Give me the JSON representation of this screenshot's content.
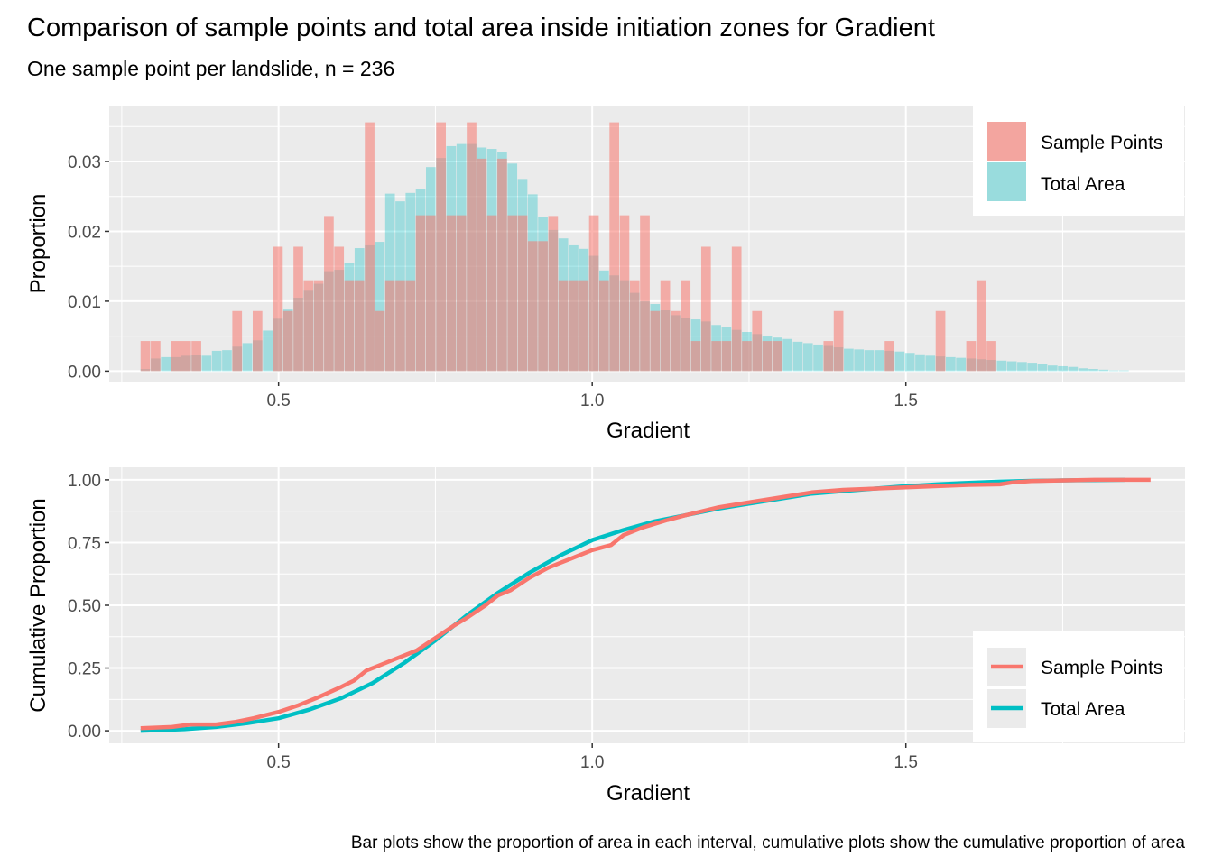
{
  "title": "Comparison of sample points and total area inside initiation zones for Gradient",
  "subtitle": "One sample point per landslide, n = 236",
  "caption": "Bar plots show the proportion of area in each interval, cumulative plots show the cumulative proportion of area",
  "colors": {
    "sample_points": "#F8766D",
    "total_area": "#00BFC4",
    "panel_bg": "#EBEBEB",
    "grid": "#FFFFFF",
    "tick_text": "#4D4D4D"
  },
  "legend": {
    "sample_points": "Sample Points",
    "total_area": "Total Area"
  },
  "chart_data": [
    {
      "type": "bar",
      "bar_mode": "overlay",
      "xlabel": "Gradient",
      "ylabel": "Proportion",
      "xlim": [
        0.23,
        1.945
      ],
      "ylim": [
        -0.0015,
        0.038
      ],
      "x_ticks": [
        0.5,
        1.0,
        1.5
      ],
      "x_tick_labels": [
        "0.5",
        "1.0",
        "1.5"
      ],
      "y_ticks": [
        0,
        0.01,
        0.02,
        0.03
      ],
      "y_tick_labels": [
        "0.00",
        "0.01",
        "0.02",
        "0.03"
      ],
      "legend_position": "top-right",
      "grid": true,
      "bin_width": 0.01625,
      "bin_start": 0.28,
      "series": [
        {
          "name": "Sample Points",
          "values": [
            0.0043,
            0.0043,
            0,
            0.0043,
            0.0043,
            0.0043,
            0,
            0,
            0,
            0.0086,
            0,
            0.0086,
            0,
            0.0178,
            0.0086,
            0.0178,
            0.013,
            0.013,
            0.0222,
            0.0178,
            0.013,
            0.013,
            0.0356,
            0.0086,
            0.013,
            0.013,
            0.013,
            0.0223,
            0.0223,
            0.0356,
            0.0223,
            0.0223,
            0.0356,
            0.0304,
            0.0223,
            0.0304,
            0.0223,
            0.0223,
            0.0186,
            0.0186,
            0.0222,
            0.013,
            0.013,
            0.013,
            0.0223,
            0.013,
            0.0356,
            0.0223,
            0.013,
            0.0223,
            0.0086,
            0.013,
            0.0086,
            0.013,
            0.0043,
            0.0178,
            0.0043,
            0.0043,
            0.0178,
            0.0043,
            0.0086,
            0.0043,
            0.0043,
            0,
            0,
            0,
            0,
            0.0043,
            0.0086,
            0,
            0,
            0,
            0,
            0.0043,
            0,
            0,
            0,
            0,
            0.0086,
            0,
            0,
            0.0043,
            0.013,
            0.0043,
            0,
            0,
            0,
            0,
            0,
            0,
            0,
            0,
            0,
            0,
            0,
            0,
            0
          ]
        },
        {
          "name": "Total Area",
          "values": [
            0.0003,
            0.0018,
            0.002,
            0.002,
            0.0022,
            0.0023,
            0.0022,
            0.0029,
            0.003,
            0.0035,
            0.004,
            0.0044,
            0.0058,
            0.0075,
            0.0088,
            0.0105,
            0.0115,
            0.0125,
            0.0143,
            0.0145,
            0.0155,
            0.0176,
            0.018,
            0.0185,
            0.0254,
            0.0243,
            0.0255,
            0.026,
            0.0292,
            0.0305,
            0.0322,
            0.0325,
            0.0325,
            0.032,
            0.0318,
            0.0313,
            0.0297,
            0.0275,
            0.0253,
            0.022,
            0.0202,
            0.019,
            0.018,
            0.0175,
            0.0165,
            0.0144,
            0.0137,
            0.013,
            0.0112,
            0.01,
            0.0096,
            0.0087,
            0.008,
            0.0076,
            0.0074,
            0.0071,
            0.0066,
            0.0063,
            0.0059,
            0.0056,
            0.0053,
            0.005,
            0.0048,
            0.0046,
            0.0042,
            0.004,
            0.0038,
            0.0036,
            0.0034,
            0.0032,
            0.0031,
            0.003,
            0.003,
            0.0029,
            0.0028,
            0.0026,
            0.0024,
            0.0022,
            0.0021,
            0.002,
            0.0019,
            0.0018,
            0.0017,
            0.0016,
            0.0015,
            0.0014,
            0.0013,
            0.0012,
            0.001,
            0.0008,
            0.0007,
            0.0006,
            0.0004,
            0.0003,
            0.0002,
            0.0001,
            0.0001
          ]
        }
      ]
    },
    {
      "type": "line",
      "xlabel": "Gradient",
      "ylabel": "Cumulative Proportion",
      "xlim": [
        0.23,
        1.945
      ],
      "ylim": [
        -0.05,
        1.05
      ],
      "x_ticks": [
        0.5,
        1.0,
        1.5
      ],
      "x_tick_labels": [
        "0.5",
        "1.0",
        "1.5"
      ],
      "y_ticks": [
        0,
        0.25,
        0.5,
        0.75,
        1.0
      ],
      "y_tick_labels": [
        "0.00",
        "0.25",
        "0.50",
        "0.75",
        "1.00"
      ],
      "legend_position": "bottom-right",
      "grid": true,
      "series": [
        {
          "name": "Sample Points",
          "x": [
            0.28,
            0.33,
            0.36,
            0.4,
            0.43,
            0.46,
            0.5,
            0.53,
            0.56,
            0.6,
            0.62,
            0.64,
            0.66,
            0.68,
            0.72,
            0.75,
            0.78,
            0.8,
            0.83,
            0.85,
            0.87,
            0.9,
            0.93,
            0.95,
            0.98,
            1.0,
            1.03,
            1.05,
            1.08,
            1.12,
            1.15,
            1.2,
            1.25,
            1.3,
            1.35,
            1.4,
            1.5,
            1.55,
            1.6,
            1.65,
            1.67,
            1.7,
            1.8,
            1.89
          ],
          "y": [
            0.01,
            0.015,
            0.025,
            0.025,
            0.035,
            0.05,
            0.075,
            0.1,
            0.13,
            0.175,
            0.2,
            0.24,
            0.26,
            0.28,
            0.32,
            0.37,
            0.42,
            0.45,
            0.5,
            0.54,
            0.56,
            0.61,
            0.65,
            0.67,
            0.7,
            0.72,
            0.74,
            0.78,
            0.81,
            0.84,
            0.86,
            0.89,
            0.91,
            0.93,
            0.95,
            0.96,
            0.97,
            0.975,
            0.98,
            0.982,
            0.99,
            0.995,
            1.0,
            1.0
          ]
        },
        {
          "name": "Total Area",
          "x": [
            0.28,
            0.35,
            0.4,
            0.45,
            0.5,
            0.55,
            0.6,
            0.65,
            0.7,
            0.75,
            0.8,
            0.85,
            0.9,
            0.95,
            1.0,
            1.05,
            1.1,
            1.15,
            1.2,
            1.25,
            1.3,
            1.35,
            1.4,
            1.45,
            1.5,
            1.55,
            1.6,
            1.65,
            1.7,
            1.75,
            1.8,
            1.85
          ],
          "y": [
            0.0,
            0.006,
            0.015,
            0.03,
            0.05,
            0.085,
            0.13,
            0.19,
            0.27,
            0.36,
            0.46,
            0.55,
            0.63,
            0.7,
            0.76,
            0.8,
            0.835,
            0.86,
            0.885,
            0.905,
            0.925,
            0.945,
            0.955,
            0.965,
            0.975,
            0.982,
            0.988,
            0.993,
            0.996,
            0.998,
            0.999,
            1.0
          ]
        }
      ]
    }
  ]
}
